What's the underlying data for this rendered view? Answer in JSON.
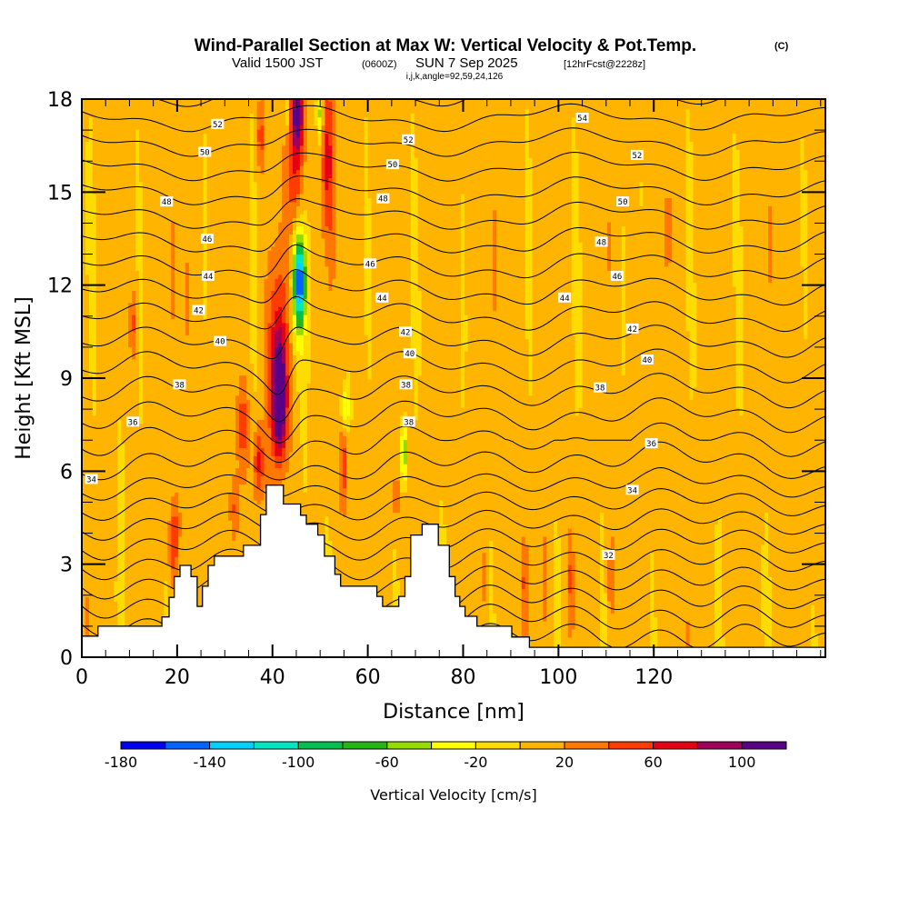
{
  "chart_data": {
    "type": "heatmap",
    "title": "Wind-Parallel Section at Max W: Vertical Velocity & Pot.Temp.",
    "title_mark": "(C)",
    "subtitle": {
      "valid_prefix": "Valid 1500 JST",
      "utc": "(0600Z)",
      "date": "SUN 7 Sep 2025",
      "forecast": "[12hrFcst@2228z]"
    },
    "subtitle2": "i,j,k,angle=92,59,24,126",
    "xlabel": "Distance [nm]",
    "ylabel": "Height [Kft MSL]",
    "xlim": [
      0,
      156
    ],
    "ylim": [
      0,
      18
    ],
    "xticks": [
      0,
      20,
      40,
      60,
      80,
      100,
      120
    ],
    "xtick_labels": [
      "0",
      "20",
      "40",
      "60",
      "80",
      "100",
      "120"
    ],
    "xminor_step": 5,
    "yticks": [
      0,
      3,
      6,
      9,
      12,
      15,
      18
    ],
    "ytick_labels": [
      "0",
      "3",
      "6",
      "9",
      "12",
      "15",
      "18"
    ],
    "yminor_step": 1,
    "colorbar": {
      "label": "Vertical Velocity [cm/s]",
      "bounds": [
        -180,
        -160,
        -140,
        -120,
        -100,
        -80,
        -60,
        -40,
        -20,
        0,
        20,
        40,
        60,
        80,
        100,
        120
      ],
      "tick_values": [
        -180,
        -140,
        -100,
        -60,
        -20,
        20,
        60,
        100
      ],
      "tick_labels": [
        "-180",
        "-140",
        "-100",
        "-60",
        "-20",
        "20",
        "60",
        "100"
      ],
      "colors": [
        "#0000ee",
        "#0064ff",
        "#00d2ff",
        "#00e6c0",
        "#00c050",
        "#28b414",
        "#96dc00",
        "#ffff00",
        "#ffdc00",
        "#ffb400",
        "#ff7800",
        "#ff3c00",
        "#e60014",
        "#a0005a",
        "#5a0087"
      ]
    },
    "theta_contours": {
      "levels": [
        30,
        31,
        32,
        33,
        34,
        35,
        36,
        37,
        38,
        39,
        40,
        41,
        42,
        43,
        44,
        45,
        46,
        47,
        48,
        49,
        50,
        51,
        52,
        53,
        54,
        55
      ],
      "labels": [
        {
          "text": "34",
          "x": 2,
          "y": 5.75
        },
        {
          "text": "36",
          "x": 10.7,
          "y": 7.6
        },
        {
          "text": "38",
          "x": 20.5,
          "y": 8.8
        },
        {
          "text": "40",
          "x": 29,
          "y": 10.2
        },
        {
          "text": "42",
          "x": 24.5,
          "y": 11.2
        },
        {
          "text": "44",
          "x": 26.5,
          "y": 12.3
        },
        {
          "text": "46",
          "x": 26.3,
          "y": 13.5
        },
        {
          "text": "48",
          "x": 17.8,
          "y": 14.7
        },
        {
          "text": "50",
          "x": 25.8,
          "y": 16.3
        },
        {
          "text": "52",
          "x": 28.5,
          "y": 17.2
        },
        {
          "text": "38",
          "x": 68.6,
          "y": 7.6
        },
        {
          "text": "38",
          "x": 68,
          "y": 8.8
        },
        {
          "text": "40",
          "x": 68.8,
          "y": 9.8
        },
        {
          "text": "42",
          "x": 67.9,
          "y": 10.5
        },
        {
          "text": "44",
          "x": 63,
          "y": 11.6
        },
        {
          "text": "46",
          "x": 60.5,
          "y": 12.7
        },
        {
          "text": "48",
          "x": 63.2,
          "y": 14.8
        },
        {
          "text": "50",
          "x": 65.2,
          "y": 15.9
        },
        {
          "text": "52",
          "x": 68.5,
          "y": 16.7
        },
        {
          "text": "54",
          "x": 105,
          "y": 17.4
        },
        {
          "text": "52",
          "x": 116.5,
          "y": 16.2
        },
        {
          "text": "50",
          "x": 113.5,
          "y": 14.7
        },
        {
          "text": "48",
          "x": 109,
          "y": 13.4
        },
        {
          "text": "46",
          "x": 112.3,
          "y": 12.3
        },
        {
          "text": "44",
          "x": 101.3,
          "y": 11.6
        },
        {
          "text": "42",
          "x": 115.5,
          "y": 10.6
        },
        {
          "text": "40",
          "x": 118.6,
          "y": 9.6
        },
        {
          "text": "38",
          "x": 108.7,
          "y": 8.7
        },
        {
          "text": "36",
          "x": 119.5,
          "y": 6.9
        },
        {
          "text": "34",
          "x": 115.5,
          "y": 5.4
        },
        {
          "text": "32",
          "x": 110.5,
          "y": 3.3
        }
      ]
    },
    "terrain_profile": {
      "x_nm": [
        0,
        3.4,
        3.4,
        16.8,
        16.8,
        18.3,
        18.3,
        19.4,
        19.4,
        20.6,
        20.6,
        22.9,
        22.9,
        24.2,
        24.2,
        25.3,
        25.3,
        26.5,
        26.5,
        27.8,
        27.8,
        33.9,
        33.9,
        37.5,
        37.5,
        38.7,
        38.7,
        42.3,
        42.3,
        45.9,
        45.9,
        47.1,
        47.1,
        49.5,
        49.5,
        50.9,
        50.9,
        53.1,
        53.1,
        54.3,
        54.3,
        61.9,
        61.9,
        63.1,
        63.1,
        66.5,
        66.5,
        67.8,
        67.8,
        69.0,
        69.0,
        71.4,
        71.4,
        74.8,
        74.8,
        77.1,
        77.1,
        78.3,
        78.3,
        79.3,
        79.3,
        80.4,
        80.4,
        82.9,
        82.9,
        90.2,
        90.2,
        93.9,
        93.9,
        156
      ],
      "z_kft": [
        0.68,
        0.68,
        1.0,
        1.0,
        1.3,
        1.3,
        1.93,
        1.93,
        2.6,
        2.6,
        2.96,
        2.96,
        2.6,
        2.6,
        1.64,
        1.64,
        2.29,
        2.29,
        2.96,
        2.96,
        3.26,
        3.26,
        3.61,
        3.61,
        4.6,
        4.6,
        5.55,
        5.55,
        4.94,
        4.94,
        4.58,
        4.58,
        4.29,
        4.29,
        3.94,
        3.94,
        3.26,
        3.26,
        2.67,
        2.67,
        2.29,
        2.29,
        1.96,
        1.96,
        1.64,
        1.64,
        1.96,
        1.96,
        2.6,
        2.6,
        3.94,
        3.94,
        4.29,
        4.29,
        3.61,
        3.61,
        2.6,
        2.6,
        1.96,
        1.96,
        1.64,
        1.64,
        1.32,
        1.32,
        1.0,
        1.0,
        0.65,
        0.65,
        0.32,
        0.32
      ]
    },
    "w_features": [
      {
        "x": 41.5,
        "z": 8.2,
        "w": 115,
        "sx": 1.3,
        "sz": 1.6
      },
      {
        "x": 41.2,
        "z": 9.5,
        "w": 70,
        "sx": 2.0,
        "sz": 3.0
      },
      {
        "x": 45.3,
        "z": 17.6,
        "w": 95,
        "sx": 1.4,
        "sz": 1.2
      },
      {
        "x": 45.0,
        "z": 15.5,
        "w": 60,
        "sx": 1.6,
        "sz": 2.2
      },
      {
        "x": 51.5,
        "z": 16.0,
        "w": 55,
        "sx": 1.4,
        "sz": 2.6
      },
      {
        "x": 45.8,
        "z": 12.1,
        "w": -105,
        "sx": 1.1,
        "sz": 1.2
      },
      {
        "x": 45.5,
        "z": 12.3,
        "w": -70,
        "sx": 1.4,
        "sz": 2.1
      },
      {
        "x": 50.0,
        "z": 17.5,
        "w": -55,
        "sx": 0.6,
        "sz": 0.9
      },
      {
        "x": 43.0,
        "z": 17.6,
        "w": -50,
        "sx": 0.5,
        "sz": 0.6
      },
      {
        "x": 55.2,
        "z": 8.0,
        "w": -55,
        "sx": 0.9,
        "sz": 0.7
      },
      {
        "x": 67.6,
        "z": 6.6,
        "w": -75,
        "sx": 0.6,
        "sz": 1.1
      },
      {
        "x": 37.1,
        "z": 6.3,
        "w": 60,
        "sx": 1.1,
        "sz": 1.2
      },
      {
        "x": 33.7,
        "z": 7.5,
        "w": 40,
        "sx": 1.3,
        "sz": 1.4
      },
      {
        "x": 19.4,
        "z": 3.6,
        "w": 55,
        "sx": 1.2,
        "sz": 1.3
      },
      {
        "x": 20.3,
        "z": 3.3,
        "w": -60,
        "sx": 0.35,
        "sz": 0.6
      },
      {
        "x": 32.0,
        "z": 4.8,
        "w": 40,
        "sx": 1.0,
        "sz": 1.2
      },
      {
        "x": 55.0,
        "z": 6.2,
        "w": 45,
        "sx": 0.9,
        "sz": 1.5
      },
      {
        "x": 66.0,
        "z": 5.2,
        "w": 40,
        "sx": 0.6,
        "sz": 0.8
      },
      {
        "x": 11.0,
        "z": 10.8,
        "w": 38,
        "sx": 0.8,
        "sz": 1.2
      },
      {
        "x": 37.5,
        "z": 16.8,
        "w": 40,
        "sx": 0.8,
        "sz": 1.0
      },
      {
        "x": 22.0,
        "z": 11.5,
        "w": 30,
        "sx": 0.8,
        "sz": 1.8
      },
      {
        "x": 123.0,
        "z": 13.8,
        "w": 35,
        "sx": 0.6,
        "sz": 1.4
      },
      {
        "x": 93.0,
        "z": 2.4,
        "w": 28,
        "sx": 0.7,
        "sz": 1.0
      },
      {
        "x": 97.0,
        "z": 2.4,
        "w": 30,
        "sx": 0.6,
        "sz": 1.4
      },
      {
        "x": 102.5,
        "z": 2.5,
        "w": 28,
        "sx": 0.6,
        "sz": 1.2
      },
      {
        "x": 111.0,
        "z": 2.5,
        "w": 32,
        "sx": 0.8,
        "sz": 1.4
      },
      {
        "x": 84.5,
        "z": 2.6,
        "w": 26,
        "sx": 0.5,
        "sz": 1.0
      }
    ]
  }
}
